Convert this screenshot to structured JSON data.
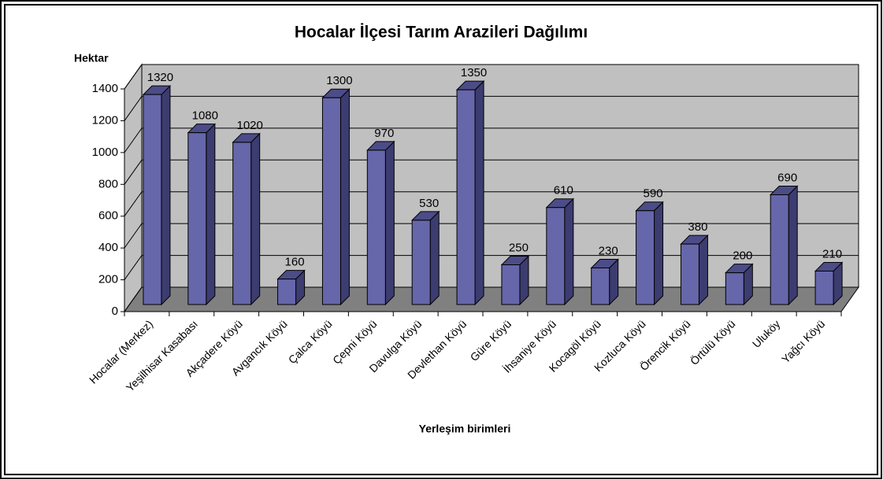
{
  "chart_data": {
    "type": "bar3d",
    "title": "Hocalar İlçesi Tarım Arazileri Dağılımı",
    "y_label": "Hektar",
    "x_label": "Yerleşim birimleri",
    "categories": [
      "Hocalar (Merkez)",
      "Yeşilhisar Kasabası",
      "Akçadere Köyü",
      "Avgancık Köyü",
      "Çalca Köyü",
      "Çepni Köyü",
      "Davulga Köyü",
      "Devlethan Köyü",
      "Güre Köyü",
      "İhsaniye Köyü",
      "Kocagöl Köyü",
      "Kozluca Köyü",
      "Örencik Köyü",
      "Örtülü Köyü",
      "Uluköy",
      "Yağcı Köyü"
    ],
    "values": [
      1320,
      1080,
      1020,
      160,
      1300,
      970,
      530,
      1350,
      250,
      610,
      230,
      590,
      380,
      200,
      690,
      210
    ],
    "color": "#6666aa",
    "ylim": [
      0,
      1400
    ],
    "yticks": [
      0,
      200,
      400,
      600,
      800,
      1000,
      1200,
      1400
    ],
    "grid": true
  }
}
